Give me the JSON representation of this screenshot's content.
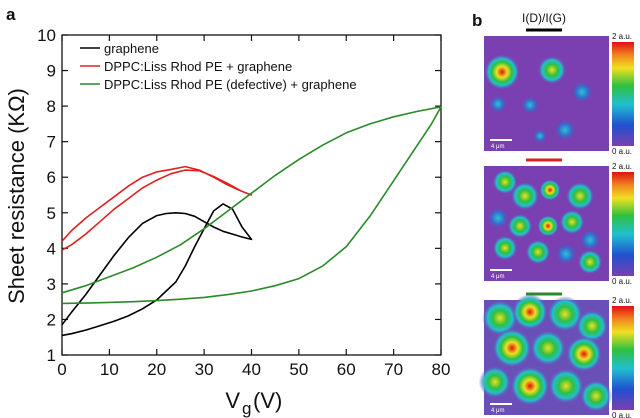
{
  "panel_a_label": "a",
  "panel_b_label": "b",
  "chart_data": {
    "type": "line",
    "title": "",
    "xlabel": "V",
    "xlabel_sub": "g",
    "xlabel_unit": "(V)",
    "ylabel": "Sheet resistance (KΩ)",
    "xlim": [
      0,
      80
    ],
    "ylim": [
      1,
      10
    ],
    "x_ticks": [
      0,
      10,
      20,
      30,
      40,
      50,
      60,
      70,
      80
    ],
    "y_ticks": [
      1,
      2,
      3,
      4,
      5,
      6,
      7,
      8,
      9,
      10
    ],
    "grid": false,
    "legend_position": "top-left",
    "series": [
      {
        "name": "graphene",
        "color": "#000000",
        "x": [
          0,
          2,
          5,
          8,
          11,
          14,
          17,
          20,
          22,
          24,
          26,
          28,
          30,
          32,
          34,
          36,
          38,
          40,
          38,
          36,
          34,
          32,
          30,
          28,
          26,
          24,
          22,
          20,
          17,
          14,
          11,
          8,
          5,
          2,
          0
        ],
        "y": [
          1.85,
          2.2,
          2.7,
          3.25,
          3.8,
          4.3,
          4.7,
          4.92,
          4.98,
          5.0,
          4.98,
          4.9,
          4.75,
          4.6,
          4.48,
          4.4,
          4.32,
          4.25,
          4.6,
          5.1,
          5.25,
          5.05,
          4.55,
          4.05,
          3.5,
          3.05,
          2.8,
          2.55,
          2.3,
          2.1,
          1.95,
          1.82,
          1.7,
          1.6,
          1.55
        ]
      },
      {
        "name": "DPPC:Liss Rhod PE + graphene",
        "color": "#e02020",
        "x": [
          0,
          2,
          5,
          8,
          11,
          14,
          17,
          20,
          23,
          26,
          29,
          32,
          35,
          38,
          40,
          38,
          35,
          32,
          29,
          26,
          23,
          20,
          17,
          14,
          11,
          8,
          5,
          2,
          0
        ],
        "y": [
          4.2,
          4.5,
          4.85,
          5.15,
          5.45,
          5.75,
          6.0,
          6.15,
          6.22,
          6.3,
          6.2,
          6.0,
          5.78,
          5.6,
          5.5,
          5.6,
          5.82,
          6.02,
          6.18,
          6.2,
          6.1,
          5.92,
          5.7,
          5.4,
          5.1,
          4.75,
          4.4,
          4.1,
          3.95
        ]
      },
      {
        "name": "DPPC:Liss Rhod PE (defective) + graphene",
        "color": "#2a8a2a",
        "x": [
          0,
          5,
          10,
          15,
          20,
          25,
          30,
          35,
          40,
          45,
          50,
          55,
          60,
          65,
          70,
          75,
          80,
          78,
          75,
          70,
          65,
          60,
          55,
          50,
          45,
          40,
          35,
          30,
          25,
          20,
          15,
          10,
          5,
          0
        ],
        "y": [
          2.75,
          2.95,
          3.2,
          3.45,
          3.75,
          4.1,
          4.55,
          5.05,
          5.55,
          6.05,
          6.5,
          6.9,
          7.25,
          7.5,
          7.7,
          7.85,
          7.98,
          7.5,
          6.9,
          5.9,
          4.9,
          4.05,
          3.5,
          3.15,
          2.95,
          2.8,
          2.7,
          2.62,
          2.57,
          2.53,
          2.5,
          2.48,
          2.46,
          2.45
        ]
      }
    ]
  },
  "maps": {
    "title": "I(D)/I(G)",
    "items": [
      {
        "marker_color": "#000000",
        "cb_top": "2 a.u.",
        "cb_bottom": "0 a.u.",
        "scale": "4 μm",
        "bg": "#7a3fb0"
      },
      {
        "marker_color": "#e02020",
        "cb_top": "2 a.u.",
        "cb_bottom": "0 a.u.",
        "scale": "4 μm",
        "bg": "#7a3fb0"
      },
      {
        "marker_color": "#2a8a2a",
        "cb_top": "2 a.u.",
        "cb_bottom": "0 a.u.",
        "scale": "4 μm",
        "bg": "#6a4fb8"
      }
    ]
  }
}
